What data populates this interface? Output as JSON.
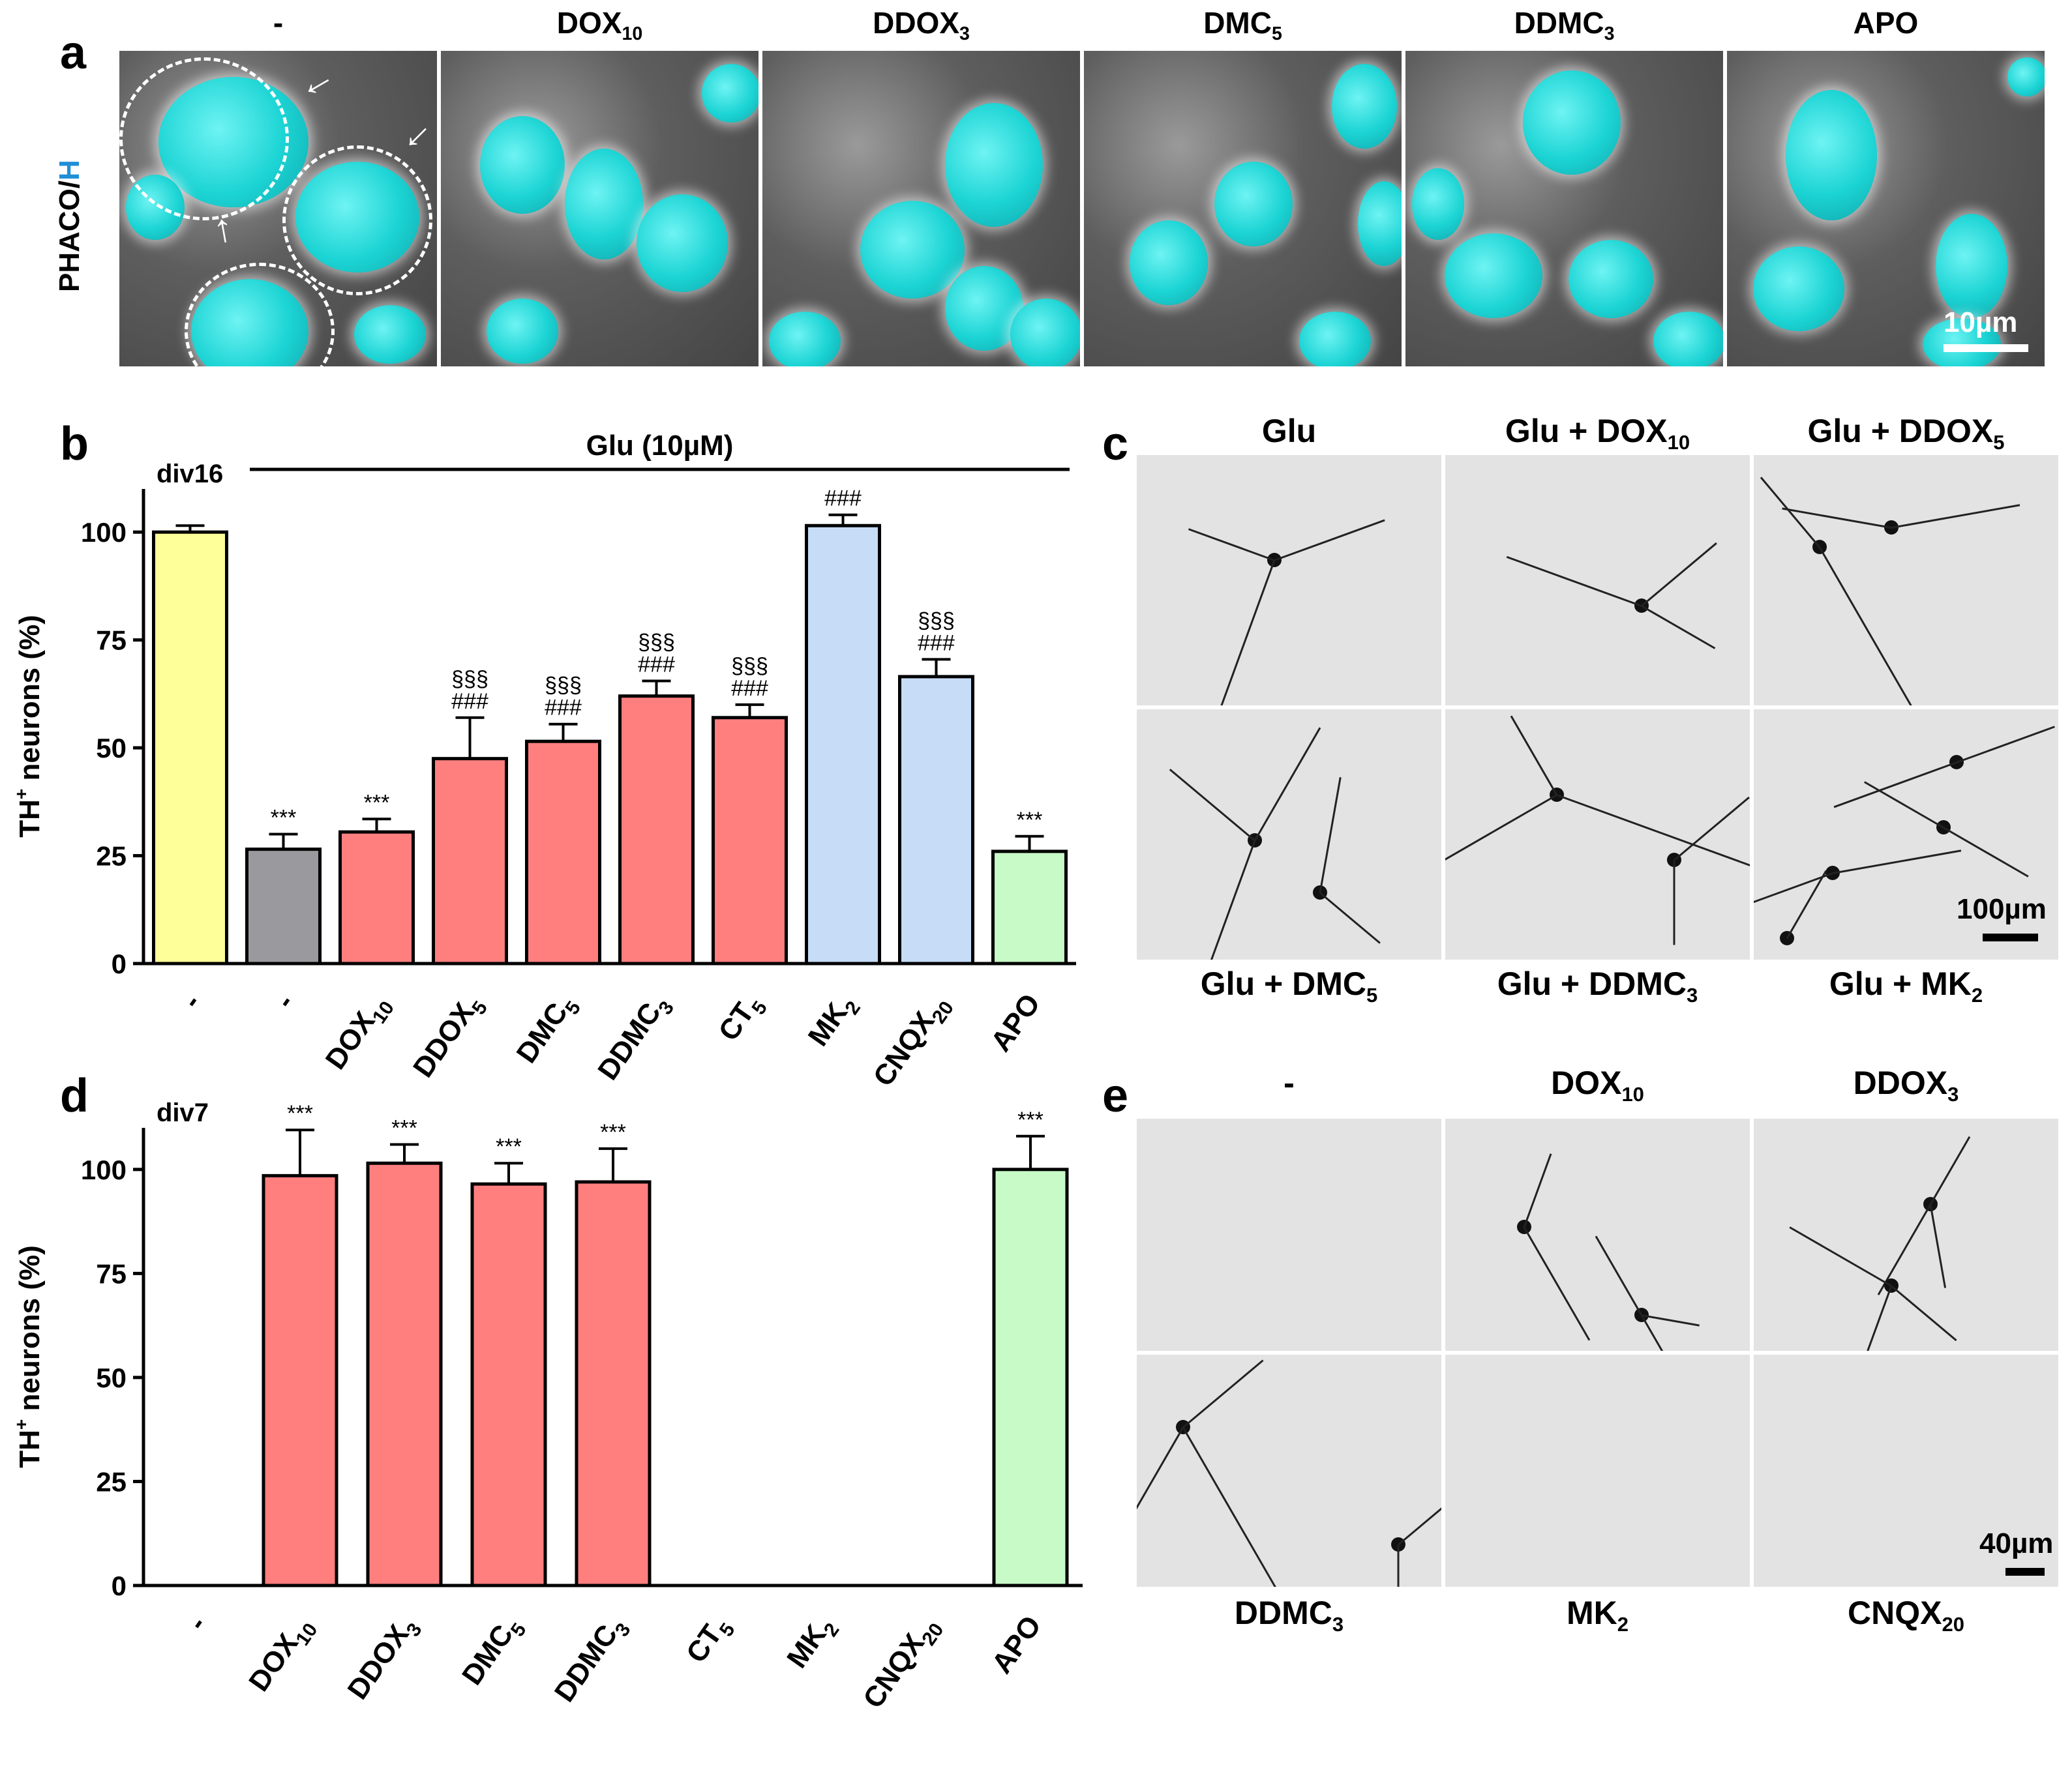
{
  "panel_a": {
    "letter": "a",
    "row_label": "PHACO/",
    "row_label_h": "H",
    "scale_label": "10µm",
    "columns": [
      {
        "base": "-",
        "sub": ""
      },
      {
        "base": "DOX",
        "sub": "10"
      },
      {
        "base": "DDOX",
        "sub": "3"
      },
      {
        "base": "DMC",
        "sub": "5"
      },
      {
        "base": "DDMC",
        "sub": "3"
      },
      {
        "base": "APO",
        "sub": ""
      }
    ]
  },
  "panel_c": {
    "letter": "c",
    "scale_label": "100µm",
    "top": [
      {
        "base": "Glu",
        "sub": ""
      },
      {
        "base": "Glu + DOX",
        "sub": "10"
      },
      {
        "base": "Glu + DDOX",
        "sub": "5"
      }
    ],
    "bottom": [
      {
        "base": "Glu + DMC",
        "sub": "5"
      },
      {
        "base": "Glu + DDMC",
        "sub": "3"
      },
      {
        "base": "Glu + MK",
        "sub": "2"
      }
    ]
  },
  "panel_e": {
    "letter": "e",
    "scale_label": "40µm",
    "top": [
      {
        "base": "-",
        "sub": ""
      },
      {
        "base": "DOX",
        "sub": "10"
      },
      {
        "base": "DDOX",
        "sub": "3"
      }
    ],
    "bottom": [
      {
        "base": "DDMC",
        "sub": "3"
      },
      {
        "base": "MK",
        "sub": "2"
      },
      {
        "base": "CNQX",
        "sub": "20"
      }
    ]
  },
  "colors": {
    "yellow": "#ffff99",
    "gray": "#9a9a9e",
    "red": "#ff7f7f",
    "blue": "#c6dcf7",
    "green": "#c8fac8",
    "cyan": "#1cd4d4",
    "h_blue": "#1f8fd6"
  },
  "chart_data": [
    {
      "type": "bar",
      "panel": "b",
      "title": "Glu (10µM)",
      "annotation": "div16",
      "ylabel": "TH+ neurons (%)",
      "ylabel_base": "TH",
      "ylabel_sup": "+",
      "ylabel_rest": " neurons (%)",
      "ylim": [
        0,
        110
      ],
      "yticks": [
        0,
        25,
        50,
        75,
        100
      ],
      "categories": [
        {
          "base": "-",
          "sub": ""
        },
        {
          "base": "-",
          "sub": ""
        },
        {
          "base": "DOX",
          "sub": "10"
        },
        {
          "base": "DDOX",
          "sub": "5"
        },
        {
          "base": "DMC",
          "sub": "5"
        },
        {
          "base": "DDMC",
          "sub": "3"
        },
        {
          "base": "CT",
          "sub": "5"
        },
        {
          "base": "MK",
          "sub": "2"
        },
        {
          "base": "CNQX",
          "sub": "20"
        },
        {
          "base": "APO",
          "sub": ""
        }
      ],
      "values": [
        100,
        26.5,
        30.5,
        47.5,
        51.5,
        62,
        57,
        101.5,
        66.5,
        26
      ],
      "errors": [
        1.5,
        3.5,
        3,
        9.5,
        4,
        3.5,
        3,
        2.5,
        4,
        3.5
      ],
      "colors": [
        "yellow",
        "gray",
        "red",
        "red",
        "red",
        "red",
        "red",
        "blue",
        "blue",
        "green"
      ],
      "labels": [
        [],
        [
          "***"
        ],
        [
          "***"
        ],
        [
          "###",
          "§§§"
        ],
        [
          "###",
          "§§§"
        ],
        [
          "###",
          "§§§"
        ],
        [
          "###",
          "§§§"
        ],
        [
          "###"
        ],
        [
          "###",
          "§§§"
        ],
        [
          "***"
        ]
      ]
    },
    {
      "type": "bar",
      "panel": "d",
      "annotation": "div7",
      "ylabel": "TH+ neurons (%)",
      "ylabel_base": "TH",
      "ylabel_sup": "+",
      "ylabel_rest": " neurons (%)",
      "ylim": [
        0,
        110
      ],
      "yticks": [
        0,
        25,
        50,
        75,
        100
      ],
      "categories": [
        {
          "base": "-",
          "sub": ""
        },
        {
          "base": "DOX",
          "sub": "10"
        },
        {
          "base": "DDOX",
          "sub": "3"
        },
        {
          "base": "DMC",
          "sub": "5"
        },
        {
          "base": "DDMC",
          "sub": "3"
        },
        {
          "base": "CT",
          "sub": "5"
        },
        {
          "base": "MK",
          "sub": "2"
        },
        {
          "base": "CNQX",
          "sub": "20"
        },
        {
          "base": "APO",
          "sub": ""
        }
      ],
      "values": [
        0,
        98.5,
        101.5,
        96.5,
        97,
        0,
        0,
        0,
        100
      ],
      "errors": [
        0,
        11,
        4.5,
        5,
        8,
        0,
        0,
        0,
        8
      ],
      "colors": [
        "red",
        "red",
        "red",
        "red",
        "red",
        "red",
        "red",
        "red",
        "green"
      ],
      "labels": [
        [],
        [
          "***"
        ],
        [
          "***"
        ],
        [
          "***"
        ],
        [
          "***"
        ],
        [],
        [],
        [],
        [
          "***"
        ]
      ]
    }
  ]
}
